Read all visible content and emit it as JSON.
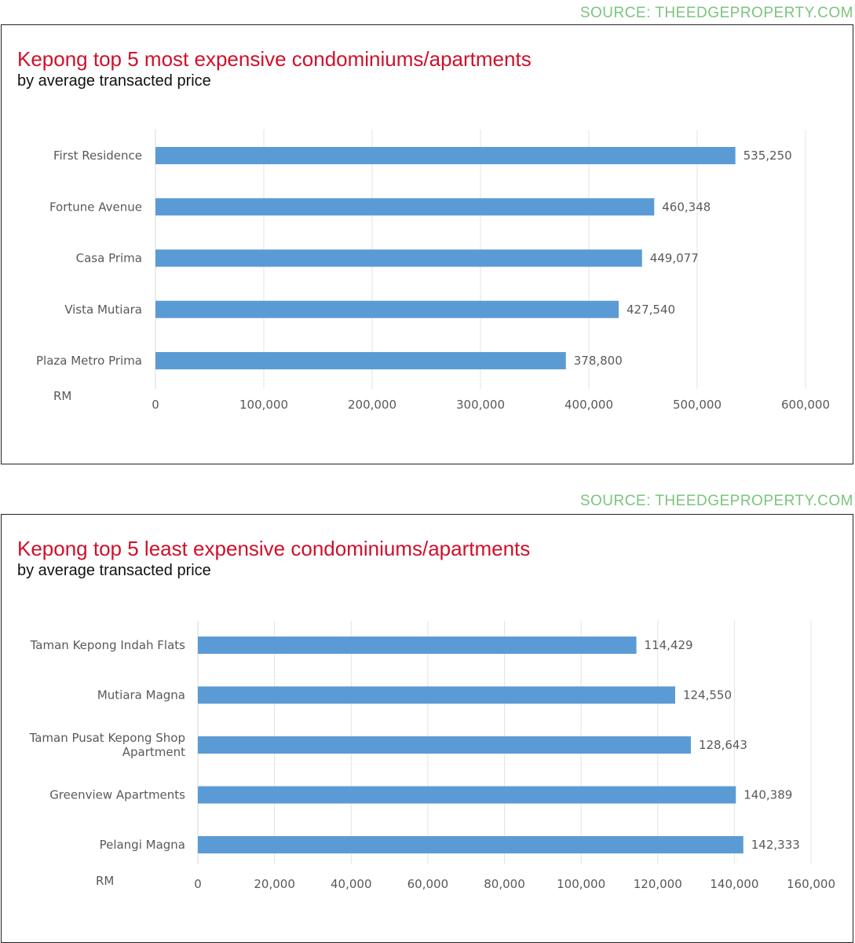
{
  "chart_data": [
    {
      "type": "bar",
      "orientation": "horizontal",
      "source": "SOURCE: THEEDGEPROPERTY.COM",
      "title": "Kepong top 5 most expensive condominiums/apartments",
      "subtitle": "by average transacted price",
      "xlabel": "RM",
      "categories": [
        "First Residence",
        "Fortune Avenue",
        "Casa Prima",
        "Vista Mutiara",
        "Plaza Metro Prima"
      ],
      "values": [
        535250,
        460348,
        449077,
        427540,
        378800
      ],
      "value_labels": [
        "535,250",
        "460,348",
        "449,077",
        "427,540",
        "378,800"
      ],
      "xlim": [
        0,
        600000
      ],
      "xticks": [
        0,
        100000,
        200000,
        300000,
        400000,
        500000,
        600000
      ],
      "xtick_labels": [
        "0",
        "100,000",
        "200,000",
        "300,000",
        "400,000",
        "500,000",
        "600,000"
      ],
      "bar_color": "#5b9bd5",
      "grid": "vertical"
    },
    {
      "type": "bar",
      "orientation": "horizontal",
      "source": "SOURCE: THEEDGEPROPERTY.COM",
      "title": "Kepong top 5 least expensive condominiums/apartments",
      "subtitle": "by average transacted price",
      "xlabel": "RM",
      "categories": [
        "Taman Kepong Indah Flats",
        "Mutiara Magna",
        "Taman Pusat Kepong Shop Apartment",
        "Greenview Apartments",
        "Pelangi Magna"
      ],
      "category_lines": [
        [
          "Taman Kepong Indah Flats"
        ],
        [
          "Mutiara Magna"
        ],
        [
          "Taman Pusat Kepong Shop",
          "Apartment"
        ],
        [
          "Greenview Apartments"
        ],
        [
          "Pelangi Magna"
        ]
      ],
      "values": [
        114429,
        124550,
        128643,
        140389,
        142333
      ],
      "value_labels": [
        "114,429",
        "124,550",
        "128,643",
        "140,389",
        "142,333"
      ],
      "xlim": [
        0,
        160000
      ],
      "xticks": [
        0,
        20000,
        40000,
        60000,
        80000,
        100000,
        120000,
        140000,
        160000
      ],
      "xtick_labels": [
        "0",
        "20,000",
        "40,000",
        "60,000",
        "80,000",
        "100,000",
        "120,000",
        "140,000",
        "160,000"
      ],
      "bar_color": "#5b9bd5",
      "grid": "vertical"
    }
  ]
}
